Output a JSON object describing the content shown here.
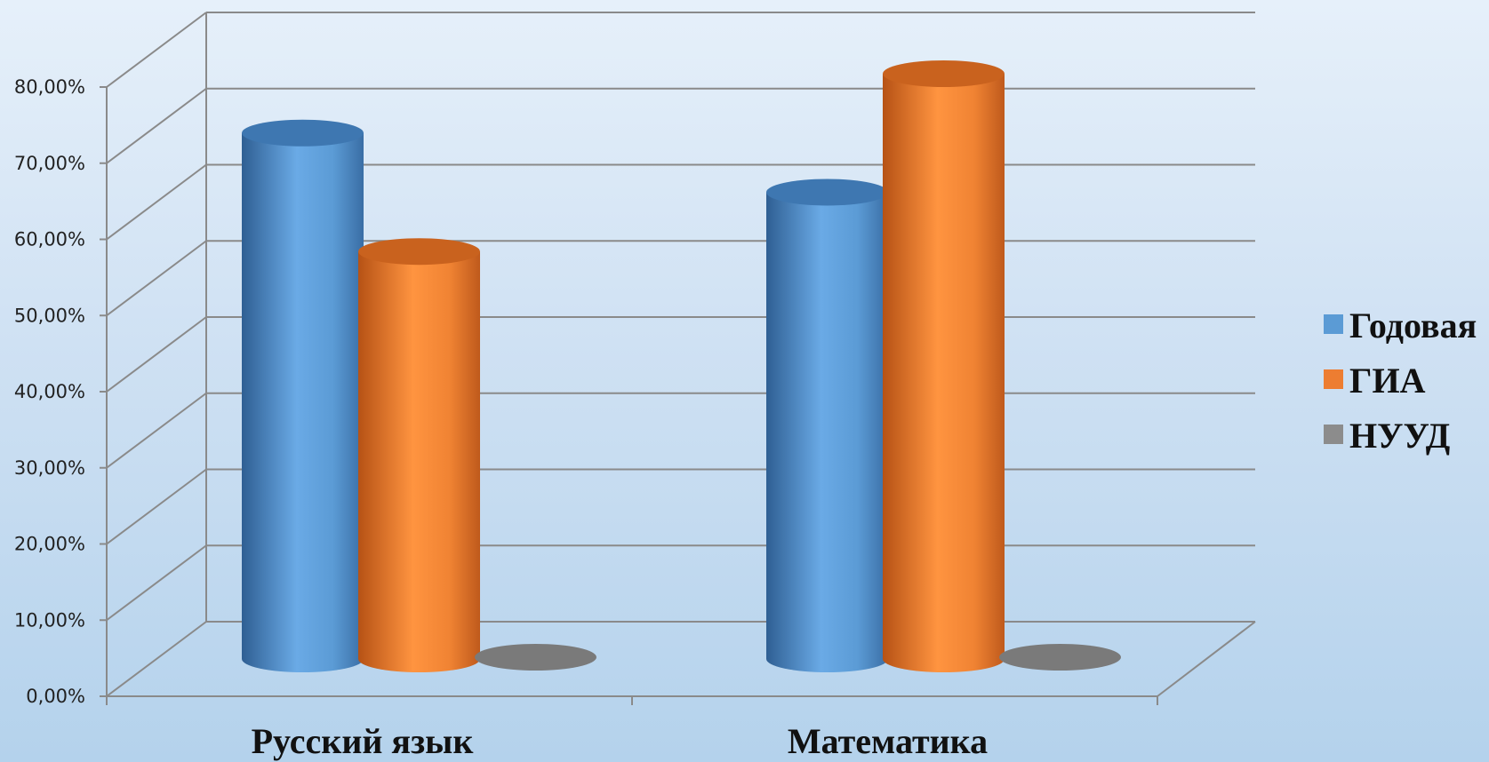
{
  "chart_data": {
    "type": "bar",
    "style": "3d-cylinder",
    "categories": [
      "Русский язык",
      "Математика"
    ],
    "series": [
      {
        "name": "Годовая",
        "values": [
          71.0,
          63.0
        ],
        "color": "#5b9bd5"
      },
      {
        "name": "ГИА",
        "values": [
          55.0,
          79.0
        ],
        "color": "#ed7d31"
      },
      {
        "name": "НУУД",
        "values": [
          0.0,
          0.0
        ],
        "color": "#8c8c8c"
      }
    ],
    "ylim": [
      0,
      80
    ],
    "yticks": [
      "0,00%",
      "10,00%",
      "20,00%",
      "30,00%",
      "40,00%",
      "50,00%",
      "60,00%",
      "70,00%",
      "80,00%"
    ],
    "grid": true,
    "legend_position": "right"
  }
}
